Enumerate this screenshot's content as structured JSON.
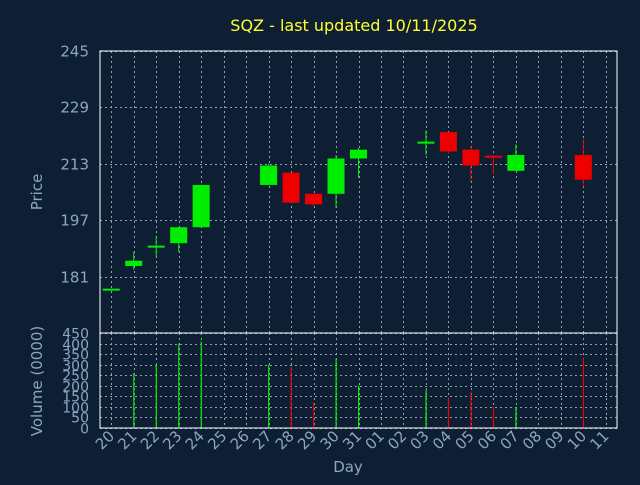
{
  "title": "SQZ - last updated 10/11/2025",
  "chart_data": [
    {
      "type": "candlestick",
      "ylabel": "Price",
      "ylim": [
        165,
        245
      ],
      "yticks": [
        181,
        197,
        213,
        229,
        245
      ],
      "grid": true,
      "candles": [
        {
          "x": "20",
          "open": 177.3,
          "high": 177.3,
          "low": 177.3,
          "close": 177.3
        },
        {
          "x": "21",
          "open": 184.0,
          "high": 188.0,
          "low": 183.0,
          "close": 185.5
        },
        {
          "x": "22",
          "open": 189.5,
          "high": 192.5,
          "low": 186.5,
          "close": 189.5
        },
        {
          "x": "23",
          "open": 190.5,
          "high": 195.0,
          "low": 188.0,
          "close": 195.0
        },
        {
          "x": "24",
          "open": 195.0,
          "high": 207.0,
          "low": 195.0,
          "close": 207.0
        },
        {
          "x": "27",
          "open": 207.0,
          "high": 213.0,
          "low": 207.0,
          "close": 212.5
        },
        {
          "x": "28",
          "open": 210.5,
          "high": 210.5,
          "low": 202.0,
          "close": 202.0
        },
        {
          "x": "29",
          "open": 204.5,
          "high": 204.5,
          "low": 201.0,
          "close": 201.5
        },
        {
          "x": "30",
          "open": 204.5,
          "high": 215.5,
          "low": 200.5,
          "close": 214.5
        },
        {
          "x": "31",
          "open": 214.5,
          "high": 217.5,
          "low": 209.0,
          "close": 217.0
        },
        {
          "x": "03",
          "open": 218.5,
          "high": 222.5,
          "low": 215.5,
          "close": 219.0
        },
        {
          "x": "04",
          "open": 222.0,
          "high": 222.0,
          "low": 216.0,
          "close": 216.5
        },
        {
          "x": "05",
          "open": 217.0,
          "high": 218.0,
          "low": 208.0,
          "close": 212.5
        },
        {
          "x": "06",
          "open": 215.0,
          "high": 215.5,
          "low": 210.0,
          "close": 214.5
        },
        {
          "x": "07",
          "open": 211.0,
          "high": 218.5,
          "low": 211.0,
          "close": 215.5
        },
        {
          "x": "10",
          "open": 215.5,
          "high": 220.0,
          "low": 206.5,
          "close": 208.5
        }
      ]
    },
    {
      "type": "bar",
      "ylabel": "Volume (0000)",
      "xlabel": "Day",
      "ylim": [
        0,
        450
      ],
      "yticks": [
        0,
        50,
        100,
        150,
        200,
        250,
        300,
        350,
        400,
        450
      ],
      "grid": true,
      "bars": [
        {
          "x": "21",
          "value": 260,
          "color": "#00ee00"
        },
        {
          "x": "22",
          "value": 300,
          "color": "#00ee00"
        },
        {
          "x": "23",
          "value": 400,
          "color": "#00ee00"
        },
        {
          "x": "24",
          "value": 410,
          "color": "#00ee00"
        },
        {
          "x": "27",
          "value": 300,
          "color": "#00ee00"
        },
        {
          "x": "28",
          "value": 290,
          "color": "#ee0000"
        },
        {
          "x": "29",
          "value": 120,
          "color": "#ee0000"
        },
        {
          "x": "30",
          "value": 330,
          "color": "#00ee00"
        },
        {
          "x": "31",
          "value": 200,
          "color": "#00ee00"
        },
        {
          "x": "03",
          "value": 180,
          "color": "#00ee00"
        },
        {
          "x": "04",
          "value": 140,
          "color": "#ee0000"
        },
        {
          "x": "05",
          "value": 170,
          "color": "#ee0000"
        },
        {
          "x": "06",
          "value": 100,
          "color": "#ee0000"
        },
        {
          "x": "07",
          "value": 100,
          "color": "#00ee00"
        },
        {
          "x": "10",
          "value": 330,
          "color": "#ee0000"
        }
      ]
    }
  ],
  "x_categories": [
    "20",
    "21",
    "22",
    "23",
    "24",
    "25",
    "26",
    "27",
    "28",
    "29",
    "30",
    "31",
    "01",
    "02",
    "03",
    "04",
    "05",
    "06",
    "07",
    "08",
    "09",
    "10",
    "11"
  ],
  "colors": {
    "background": "#0f1f33",
    "up": "#00ee00",
    "down": "#ee0000",
    "grid": "#8fa0b4",
    "text": "#8aa6c4",
    "title": "#ffff33"
  }
}
